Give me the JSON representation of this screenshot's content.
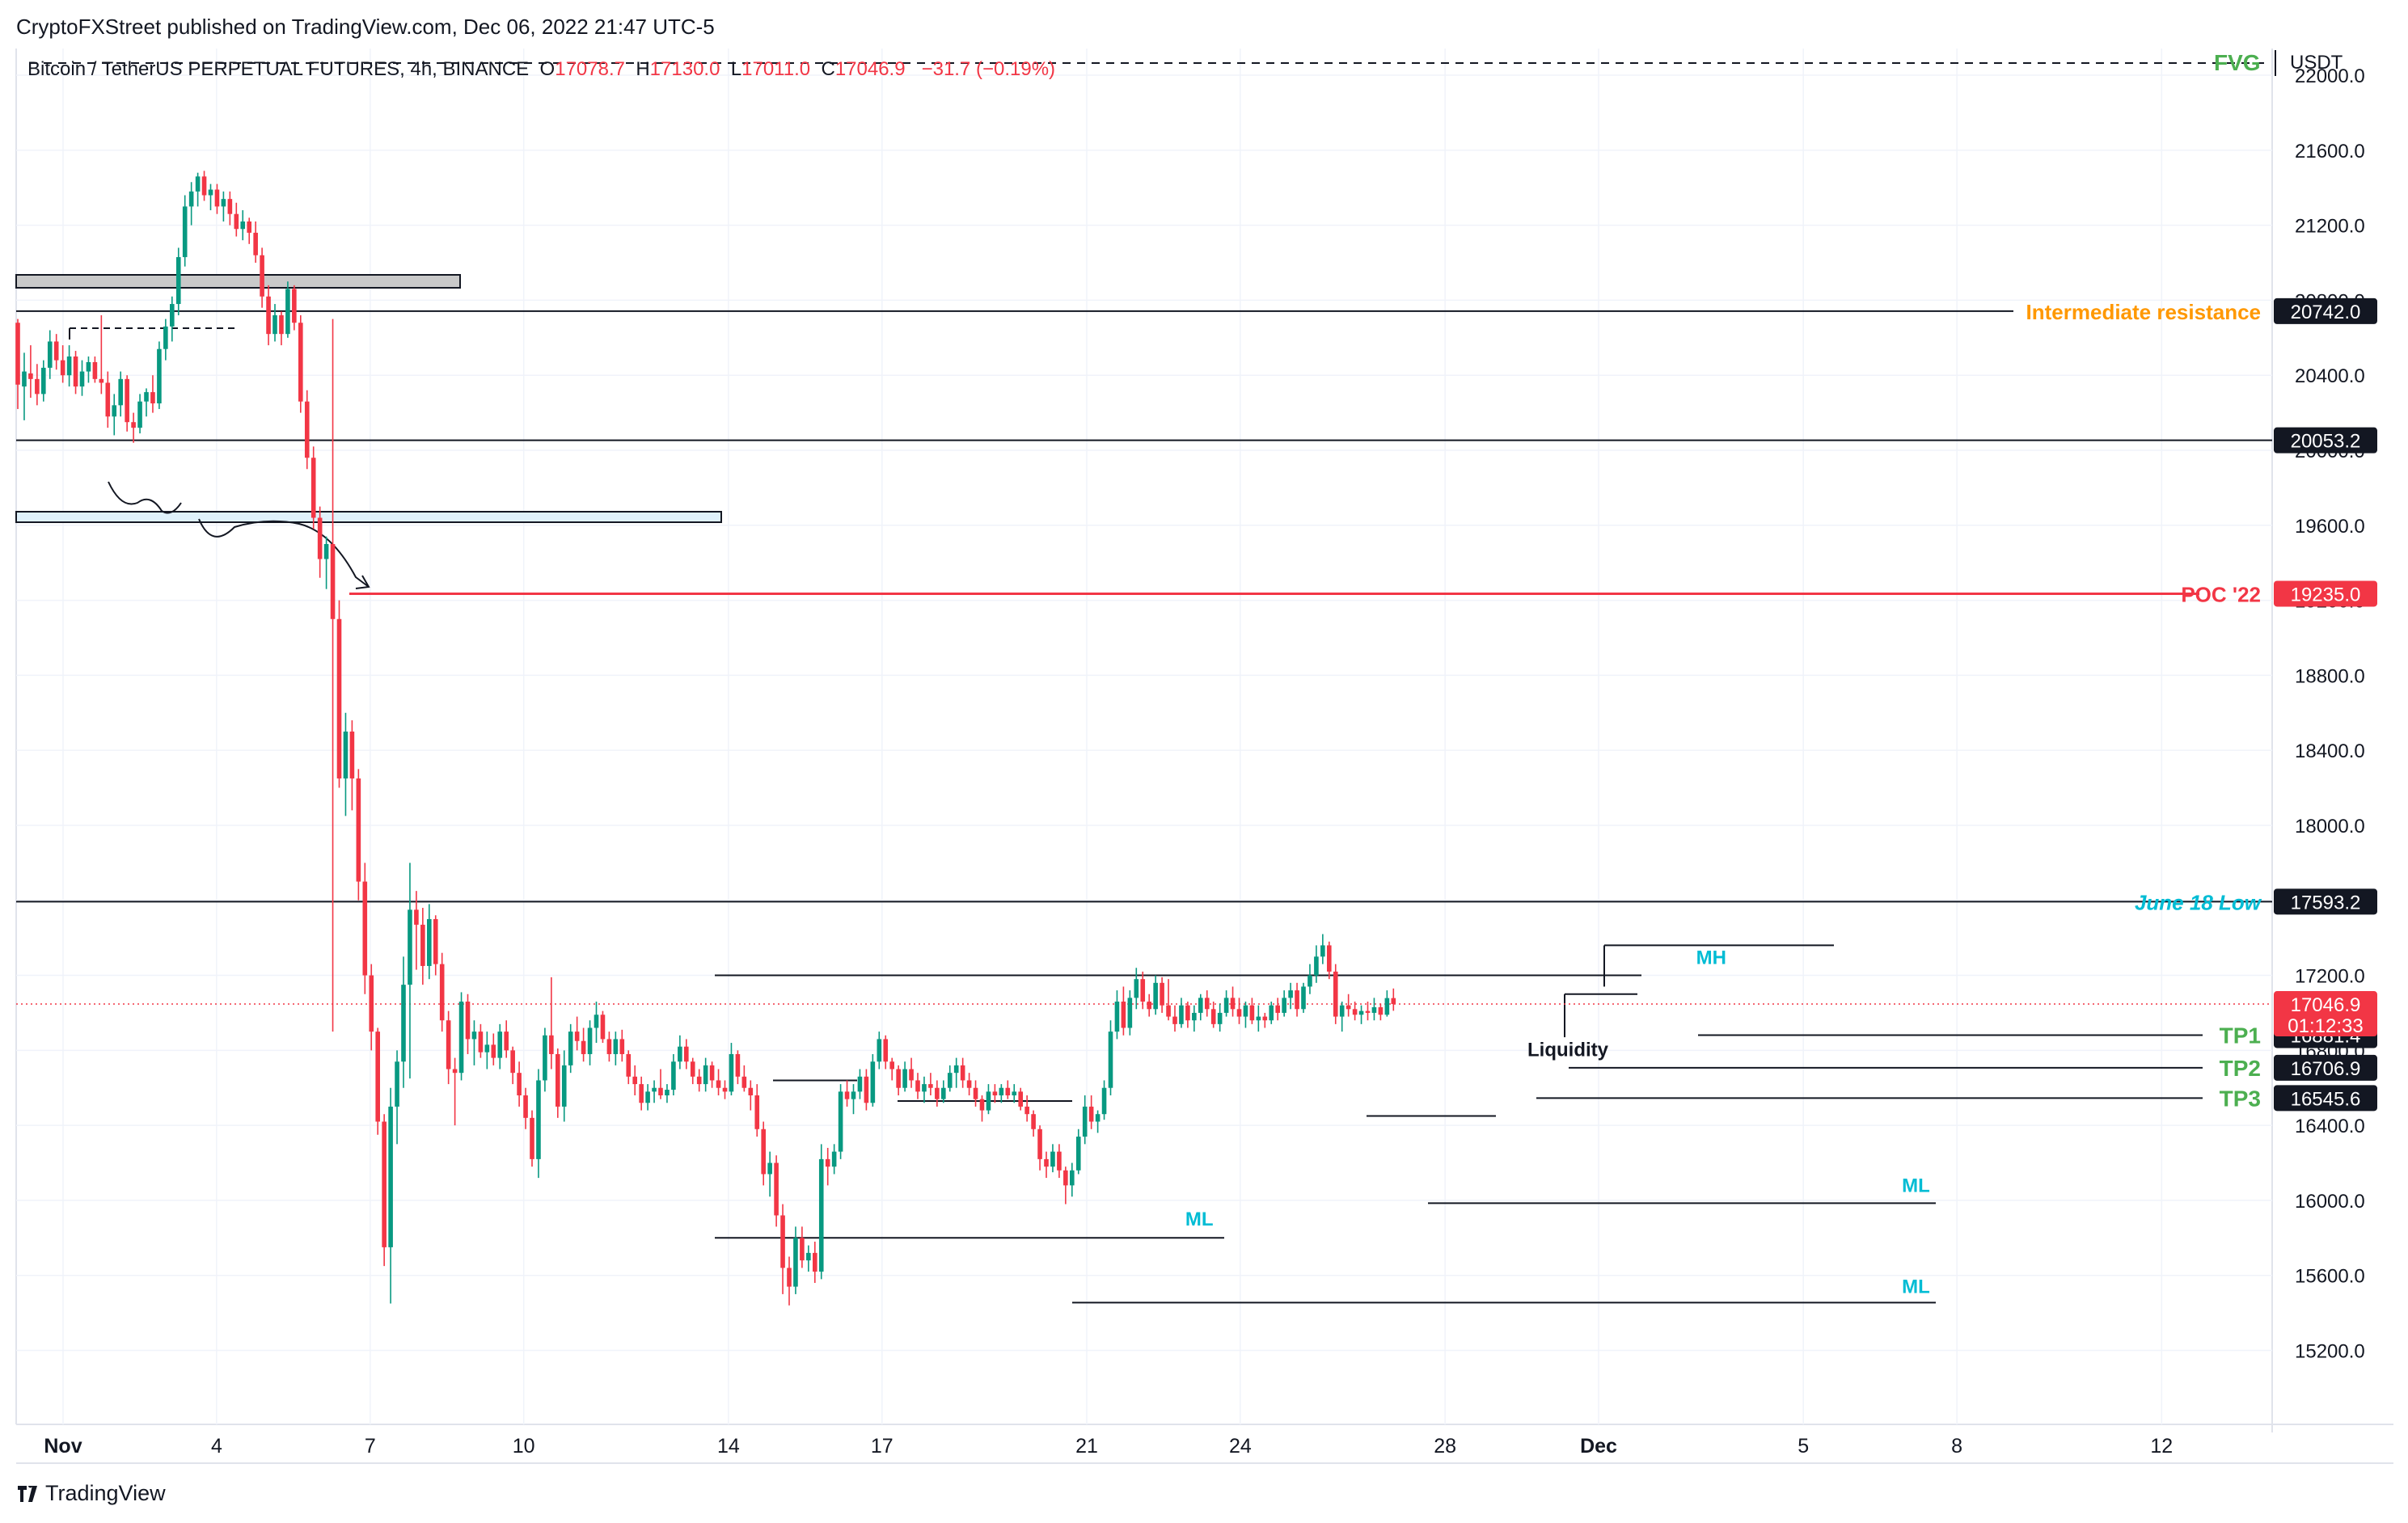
{
  "header": {
    "published": "CryptoFXStreet published on TradingView.com, Dec 06, 2022 21:47 UTC-5",
    "symbol": "Bitcoin / TetherUS PERPETUAL FUTURES, 4h, BINANCE",
    "ohlc": [
      {
        "k": "O",
        "v": "17078.7"
      },
      {
        "k": "H",
        "v": "17130.0"
      },
      {
        "k": "L",
        "v": "17011.0"
      },
      {
        "k": "C",
        "v": "17046.9"
      }
    ],
    "change": "−31.7 (−0.19%)",
    "currency": "USDT",
    "fvg_label": "FVG"
  },
  "footer": {
    "brand": "TradingView"
  },
  "colors": {
    "up": "#089981",
    "down": "#f23645",
    "poc": "#f23645",
    "orange": "#ff9800",
    "teal": "#00bcd4",
    "green": "#4caf50",
    "black": "#131722"
  },
  "chart_data": {
    "type": "candlestick",
    "timeframe": "4h",
    "ylim": [
      14900,
      22100
    ],
    "yticks": [
      15200,
      15600,
      16000,
      16400,
      16800,
      17200,
      17600,
      18000,
      18400,
      18800,
      19200,
      19600,
      20000,
      20400,
      20800,
      21200,
      21600,
      22000
    ],
    "xticks": [
      {
        "label": "Nov",
        "day": 1,
        "bold": true
      },
      {
        "label": "4",
        "day": 4
      },
      {
        "label": "7",
        "day": 7
      },
      {
        "label": "10",
        "day": 10
      },
      {
        "label": "14",
        "day": 14
      },
      {
        "label": "17",
        "day": 17
      },
      {
        "label": "21",
        "day": 21
      },
      {
        "label": "24",
        "day": 24
      },
      {
        "label": "28",
        "day": 28
      },
      {
        "label": "Dec",
        "day": 31,
        "bold": true
      },
      {
        "label": "5",
        "day": 35
      },
      {
        "label": "8",
        "day": 38
      },
      {
        "label": "12",
        "day": 42
      }
    ],
    "last_price": "17046.9",
    "countdown": "01:12:33",
    "price_tags": [
      {
        "value": 20742.0,
        "text": "20742.0",
        "style": "dark",
        "name": "Intermediate resistance",
        "name_color": "#ff9800"
      },
      {
        "value": 20053.2,
        "text": "20053.2",
        "style": "dark"
      },
      {
        "value": 19235.0,
        "text": "19235.0",
        "style": "red",
        "name": "POC '22",
        "name_color": "#f23645"
      },
      {
        "value": 17593.2,
        "text": "17593.2",
        "style": "dark",
        "name": "June 18 Low",
        "name_color": "#00bcd4"
      },
      {
        "value": 16881.4,
        "text": "16881.4",
        "style": "dark",
        "name": "TP1",
        "name_color": "#4caf50"
      },
      {
        "value": 16706.9,
        "text": "16706.9",
        "style": "dark",
        "name": "TP2",
        "name_color": "#4caf50"
      },
      {
        "value": 16545.6,
        "text": "16545.6",
        "style": "dark",
        "name": "TP3",
        "name_color": "#4caf50"
      }
    ],
    "annotations": [
      {
        "text": "MH",
        "day": 33.2,
        "price": 17260,
        "color": "#00bcd4"
      },
      {
        "text": "Liquidity",
        "day": 30.4,
        "price": 16770,
        "color": "#131722"
      },
      {
        "text": "ML",
        "day": 23.2,
        "price": 15865,
        "color": "#00bcd4"
      },
      {
        "text": "ML",
        "day": 37.2,
        "price": 16045,
        "color": "#00bcd4"
      },
      {
        "text": "ML",
        "day": 37.2,
        "price": 15505,
        "color": "#00bcd4"
      }
    ],
    "candles": [
      [
        20680,
        20700,
        20220,
        20350
      ],
      [
        20340,
        20520,
        20160,
        20420
      ],
      [
        20410,
        20560,
        20280,
        20380
      ],
      [
        20380,
        20460,
        20240,
        20300
      ],
      [
        20300,
        20480,
        20260,
        20440
      ],
      [
        20440,
        20640,
        20380,
        20580
      ],
      [
        20580,
        20620,
        20430,
        20480
      ],
      [
        20480,
        20560,
        20360,
        20400
      ],
      [
        20400,
        20560,
        20340,
        20500
      ],
      [
        20500,
        20530,
        20300,
        20340
      ],
      [
        20340,
        20480,
        20290,
        20420
      ],
      [
        20420,
        20500,
        20360,
        20470
      ],
      [
        20470,
        20500,
        20360,
        20380
      ],
      [
        20380,
        20720,
        20300,
        20360
      ],
      [
        20360,
        20420,
        20120,
        20180
      ],
      [
        20180,
        20300,
        20080,
        20240
      ],
      [
        20240,
        20420,
        20180,
        20380
      ],
      [
        20380,
        20400,
        20100,
        20150
      ],
      [
        20150,
        20200,
        20040,
        20120
      ],
      [
        20120,
        20300,
        20090,
        20260
      ],
      [
        20260,
        20330,
        20180,
        20310
      ],
      [
        20310,
        20400,
        20200,
        20250
      ],
      [
        20250,
        20580,
        20220,
        20540
      ],
      [
        20540,
        20700,
        20480,
        20660
      ],
      [
        20660,
        20820,
        20580,
        20780
      ],
      [
        20780,
        21080,
        20720,
        21030
      ],
      [
        21030,
        21360,
        20980,
        21300
      ],
      [
        21300,
        21430,
        21200,
        21380
      ],
      [
        21380,
        21480,
        21300,
        21460
      ],
      [
        21460,
        21490,
        21330,
        21360
      ],
      [
        21360,
        21420,
        21280,
        21390
      ],
      [
        21390,
        21420,
        21260,
        21300
      ],
      [
        21300,
        21380,
        21220,
        21340
      ],
      [
        21340,
        21380,
        21200,
        21260
      ],
      [
        21260,
        21320,
        21140,
        21180
      ],
      [
        21180,
        21280,
        21120,
        21220
      ],
      [
        21220,
        21240,
        21100,
        21160
      ],
      [
        21160,
        21220,
        21000,
        21040
      ],
      [
        21040,
        21080,
        20760,
        20820
      ],
      [
        20820,
        20880,
        20560,
        20620
      ],
      [
        20620,
        20780,
        20580,
        20720
      ],
      [
        20720,
        20740,
        20560,
        20620
      ],
      [
        20620,
        20900,
        20600,
        20860
      ],
      [
        20860,
        20880,
        20640,
        20680
      ],
      [
        20680,
        20720,
        20200,
        20260
      ],
      [
        20260,
        20320,
        19900,
        19960
      ],
      [
        19960,
        20020,
        19580,
        19640
      ],
      [
        19640,
        19700,
        19320,
        19420
      ],
      [
        19420,
        19540,
        19260,
        19500
      ],
      [
        19500,
        20700,
        16900,
        19100
      ],
      [
        19100,
        19200,
        18200,
        18250
      ],
      [
        18250,
        18600,
        18050,
        18500
      ],
      [
        18500,
        18560,
        18080,
        18250
      ],
      [
        18250,
        18300,
        17600,
        17700
      ],
      [
        17700,
        17800,
        17100,
        17200
      ],
      [
        17200,
        17260,
        16800,
        16900
      ],
      [
        16900,
        16920,
        16350,
        16420
      ],
      [
        16420,
        16460,
        15650,
        15750
      ],
      [
        15750,
        16600,
        15450,
        16500
      ],
      [
        16500,
        16800,
        16300,
        16740
      ],
      [
        16740,
        17300,
        16600,
        17150
      ],
      [
        17150,
        17800,
        16650,
        17550
      ],
      [
        17550,
        17650,
        17230,
        17470
      ],
      [
        17470,
        17560,
        17150,
        17250
      ],
      [
        17250,
        17580,
        17180,
        17500
      ],
      [
        17500,
        17520,
        17200,
        17260
      ],
      [
        17260,
        17320,
        16900,
        16960
      ],
      [
        16960,
        17010,
        16620,
        16700
      ],
      [
        16700,
        16760,
        16400,
        16680
      ],
      [
        16680,
        17110,
        16640,
        17060
      ],
      [
        17060,
        17100,
        16780,
        16860
      ],
      [
        16860,
        16960,
        16720,
        16900
      ],
      [
        16900,
        16940,
        16760,
        16790
      ],
      [
        16790,
        16900,
        16700,
        16830
      ],
      [
        16830,
        16890,
        16720,
        16760
      ],
      [
        16760,
        16940,
        16700,
        16900
      ],
      [
        16900,
        16960,
        16760,
        16800
      ],
      [
        16800,
        16820,
        16620,
        16680
      ],
      [
        16680,
        16740,
        16500,
        16560
      ],
      [
        16560,
        16600,
        16380,
        16440
      ],
      [
        16440,
        16480,
        16180,
        16220
      ],
      [
        16220,
        16700,
        16120,
        16640
      ],
      [
        16640,
        16920,
        16580,
        16880
      ],
      [
        16880,
        17190,
        16700,
        16780
      ],
      [
        16780,
        16810,
        16440,
        16500
      ],
      [
        16500,
        16800,
        16420,
        16720
      ],
      [
        16720,
        16940,
        16680,
        16900
      ],
      [
        16900,
        16980,
        16800,
        16850
      ],
      [
        16850,
        16920,
        16740,
        16780
      ],
      [
        16780,
        16960,
        16720,
        16920
      ],
      [
        16920,
        17060,
        16840,
        16990
      ],
      [
        16990,
        17010,
        16840,
        16860
      ],
      [
        16860,
        16900,
        16740,
        16780
      ],
      [
        16780,
        16900,
        16720,
        16860
      ],
      [
        16860,
        16910,
        16740,
        16780
      ],
      [
        16780,
        16800,
        16620,
        16660
      ],
      [
        16660,
        16720,
        16560,
        16620
      ],
      [
        16620,
        16660,
        16480,
        16520
      ],
      [
        16520,
        16620,
        16480,
        16580
      ],
      [
        16580,
        16640,
        16520,
        16600
      ],
      [
        16600,
        16700,
        16540,
        16560
      ],
      [
        16560,
        16620,
        16520,
        16590
      ],
      [
        16590,
        16780,
        16560,
        16740
      ],
      [
        16740,
        16880,
        16700,
        16820
      ],
      [
        16820,
        16860,
        16700,
        16740
      ],
      [
        16740,
        16760,
        16620,
        16660
      ],
      [
        16660,
        16700,
        16580,
        16620
      ],
      [
        16620,
        16760,
        16580,
        16720
      ],
      [
        16720,
        16740,
        16600,
        16640
      ],
      [
        16640,
        16700,
        16560,
        16600
      ],
      [
        16600,
        16640,
        16540,
        16580
      ],
      [
        16580,
        16840,
        16560,
        16780
      ],
      [
        16780,
        16800,
        16620,
        16660
      ],
      [
        16660,
        16720,
        16580,
        16600
      ],
      [
        16600,
        16640,
        16480,
        16560
      ],
      [
        16560,
        16620,
        16340,
        16380
      ],
      [
        16380,
        16420,
        16080,
        16140
      ],
      [
        16140,
        16260,
        16020,
        16200
      ],
      [
        16200,
        16240,
        15860,
        15920
      ],
      [
        15920,
        15980,
        15500,
        15640
      ],
      [
        15640,
        15700,
        15440,
        15540
      ],
      [
        15540,
        15860,
        15500,
        15800
      ],
      [
        15800,
        15860,
        15640,
        15680
      ],
      [
        15680,
        15760,
        15620,
        15720
      ],
      [
        15720,
        15780,
        15560,
        15620
      ],
      [
        15620,
        16300,
        15580,
        16220
      ],
      [
        16220,
        16280,
        16080,
        16180
      ],
      [
        16180,
        16300,
        16140,
        16260
      ],
      [
        16260,
        16620,
        16220,
        16580
      ],
      [
        16580,
        16640,
        16500,
        16540
      ],
      [
        16540,
        16620,
        16460,
        16580
      ],
      [
        16580,
        16700,
        16540,
        16660
      ],
      [
        16660,
        16700,
        16480,
        16520
      ],
      [
        16520,
        16780,
        16500,
        16740
      ],
      [
        16740,
        16900,
        16700,
        16860
      ],
      [
        16860,
        16880,
        16700,
        16740
      ],
      [
        16740,
        16760,
        16640,
        16700
      ],
      [
        16700,
        16720,
        16560,
        16600
      ],
      [
        16600,
        16740,
        16580,
        16700
      ],
      [
        16700,
        16760,
        16600,
        16640
      ],
      [
        16640,
        16680,
        16540,
        16580
      ],
      [
        16580,
        16660,
        16520,
        16620
      ],
      [
        16620,
        16680,
        16560,
        16600
      ],
      [
        16600,
        16640,
        16500,
        16540
      ],
      [
        16540,
        16640,
        16520,
        16600
      ],
      [
        16600,
        16720,
        16580,
        16680
      ],
      [
        16680,
        16760,
        16600,
        16720
      ],
      [
        16720,
        16760,
        16600,
        16640
      ],
      [
        16640,
        16680,
        16560,
        16600
      ],
      [
        16600,
        16640,
        16500,
        16540
      ],
      [
        16540,
        16560,
        16420,
        16480
      ],
      [
        16480,
        16620,
        16460,
        16580
      ],
      [
        16580,
        16620,
        16520,
        16560
      ],
      [
        16560,
        16620,
        16520,
        16600
      ],
      [
        16600,
        16640,
        16540,
        16560
      ],
      [
        16560,
        16620,
        16520,
        16580
      ],
      [
        16580,
        16600,
        16480,
        16500
      ],
      [
        16500,
        16560,
        16420,
        16460
      ],
      [
        16460,
        16480,
        16340,
        16380
      ],
      [
        16380,
        16400,
        16160,
        16220
      ],
      [
        16220,
        16260,
        16120,
        16180
      ],
      [
        16180,
        16300,
        16150,
        16260
      ],
      [
        16260,
        16300,
        16120,
        16160
      ],
      [
        16160,
        16180,
        15980,
        16080
      ],
      [
        16080,
        16200,
        16020,
        16160
      ],
      [
        16160,
        16380,
        16140,
        16340
      ],
      [
        16340,
        16560,
        16300,
        16500
      ],
      [
        16500,
        16560,
        16380,
        16420
      ],
      [
        16420,
        16480,
        16360,
        16460
      ],
      [
        16460,
        16640,
        16430,
        16600
      ],
      [
        16600,
        16960,
        16560,
        16900
      ],
      [
        16900,
        17120,
        16860,
        17060
      ],
      [
        17060,
        17140,
        16880,
        16920
      ],
      [
        16920,
        17120,
        16880,
        17080
      ],
      [
        17080,
        17240,
        17020,
        17180
      ],
      [
        17180,
        17220,
        17020,
        17060
      ],
      [
        17060,
        17100,
        16980,
        17020
      ],
      [
        17020,
        17200,
        16990,
        17160
      ],
      [
        17160,
        17190,
        17000,
        17040
      ],
      [
        17040,
        17180,
        16960,
        16980
      ],
      [
        16980,
        17040,
        16900,
        16940
      ],
      [
        16940,
        17080,
        16920,
        17040
      ],
      [
        17040,
        17060,
        16920,
        16960
      ],
      [
        16960,
        17040,
        16900,
        17000
      ],
      [
        17000,
        17100,
        16960,
        17080
      ],
      [
        17080,
        17120,
        16980,
        17020
      ],
      [
        17020,
        17060,
        16920,
        16940
      ],
      [
        16940,
        17050,
        16900,
        17000
      ],
      [
        17000,
        17120,
        16980,
        17080
      ],
      [
        17080,
        17140,
        16980,
        17020
      ],
      [
        17020,
        17080,
        16940,
        16980
      ],
      [
        16980,
        17060,
        16920,
        17040
      ],
      [
        17040,
        17080,
        16940,
        16960
      ],
      [
        16960,
        17040,
        16900,
        16980
      ],
      [
        16980,
        17000,
        16920,
        16960
      ],
      [
        16960,
        17060,
        16940,
        17040
      ],
      [
        17040,
        17080,
        16960,
        17000
      ],
      [
        17000,
        17120,
        16980,
        17080
      ],
      [
        17080,
        17160,
        17020,
        17120
      ],
      [
        17120,
        17160,
        16980,
        17020
      ],
      [
        17020,
        17160,
        17000,
        17140
      ],
      [
        17140,
        17260,
        17100,
        17200
      ],
      [
        17200,
        17360,
        17160,
        17300
      ],
      [
        17300,
        17420,
        17260,
        17360
      ],
      [
        17360,
        17380,
        17180,
        17220
      ],
      [
        17220,
        17260,
        16940,
        16980
      ],
      [
        16980,
        17060,
        16900,
        17040
      ],
      [
        17040,
        17100,
        16980,
        17020
      ],
      [
        17020,
        17060,
        16960,
        16990
      ],
      [
        16990,
        17040,
        16940,
        17010
      ],
      [
        17010,
        17060,
        16960,
        17000
      ],
      [
        17000,
        17080,
        16960,
        17030
      ],
      [
        17030,
        17050,
        16960,
        16990
      ],
      [
        16990,
        17120,
        16980,
        17078.7
      ],
      [
        17078.7,
        17130,
        17011,
        17046.9
      ]
    ]
  }
}
